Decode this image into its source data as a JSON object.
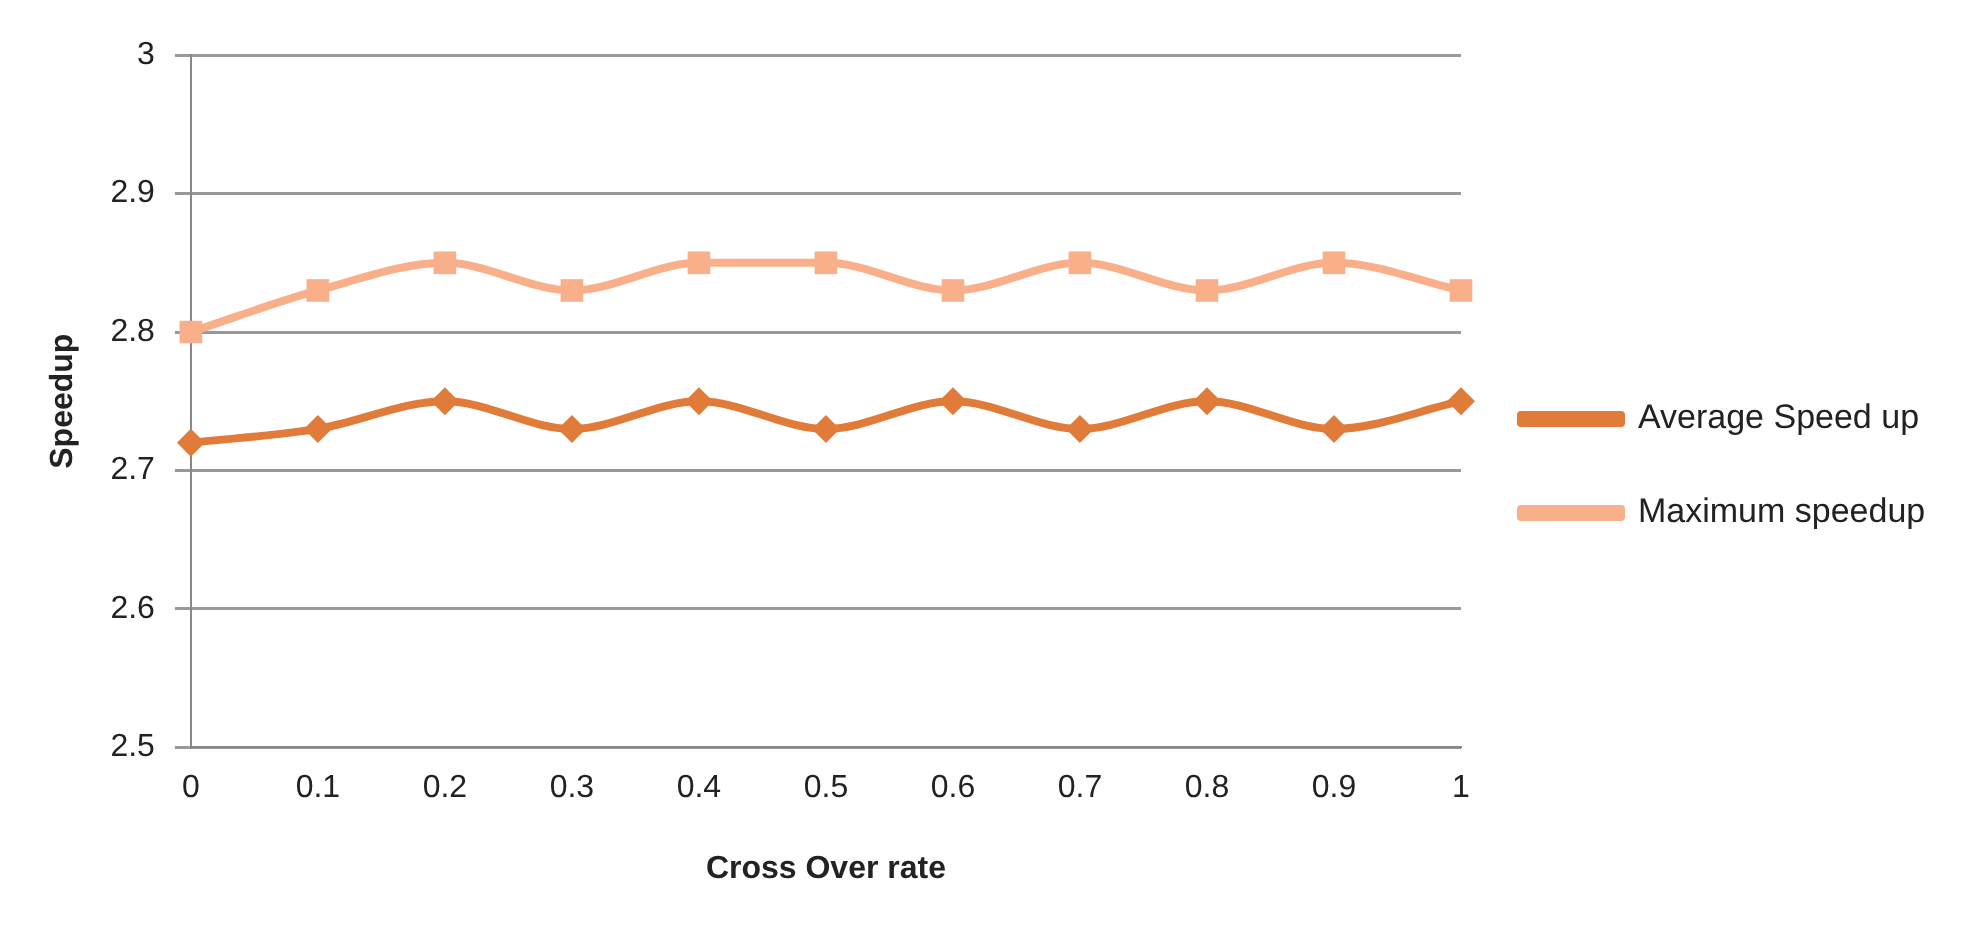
{
  "chart_data": {
    "type": "line",
    "xlabel": "Cross Over rate",
    "ylabel": "Speedup",
    "categories": [
      "0",
      "0.1",
      "0.2",
      "0.3",
      "0.4",
      "0.5",
      "0.6",
      "0.7",
      "0.8",
      "0.9",
      "1"
    ],
    "series": [
      {
        "name": "Average Speed up",
        "color": "#e07b39",
        "marker": "diamond",
        "values": [
          2.72,
          2.73,
          2.75,
          2.73,
          2.75,
          2.73,
          2.75,
          2.73,
          2.75,
          2.73,
          2.75
        ]
      },
      {
        "name": "Maximum speedup",
        "color": "#f9b08a",
        "marker": "square",
        "values": [
          2.8,
          2.83,
          2.85,
          2.83,
          2.85,
          2.85,
          2.83,
          2.85,
          2.83,
          2.85,
          2.83
        ]
      }
    ],
    "ylim": [
      2.5,
      3
    ],
    "yticks": [
      2.5,
      2.6,
      2.7,
      2.8,
      2.9,
      3
    ],
    "grid": "y",
    "legend": "right",
    "line_style": "solid"
  }
}
